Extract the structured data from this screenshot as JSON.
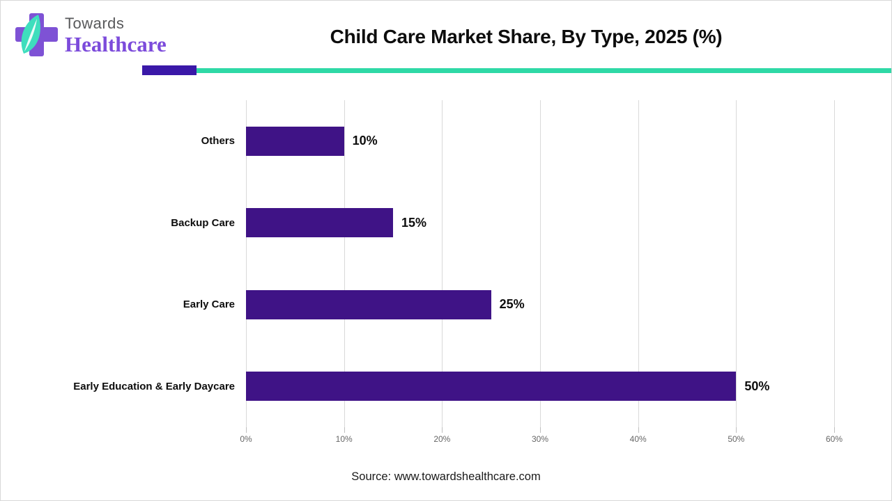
{
  "page": {
    "background": "#ffffff",
    "border_color": "#d8d8d8"
  },
  "header": {
    "logo": {
      "brand_top": "Towards",
      "brand_bottom": "Healthcare",
      "cross_color": "#7E52D5",
      "leaf_color": "#3EDEBD",
      "brand_top_color": "#58595B",
      "brand_bottom_color": "#7C4BDB"
    },
    "title": "Child Care Market Share, By Type, 2025 (%)",
    "accent_purple": "#3A18A8",
    "accent_teal": "#2FD9A6"
  },
  "chart_data": {
    "type": "bar",
    "orientation": "horizontal",
    "title": "Child Care Market Share, By Type, 2025 (%)",
    "categories": [
      "Others",
      "Backup Care",
      "Early Care",
      "Early Education & Early Daycare"
    ],
    "values": [
      10,
      15,
      25,
      50
    ],
    "value_labels": [
      "10%",
      "15%",
      "25%",
      "50%"
    ],
    "xlabel": "",
    "ylabel": "",
    "xlim": [
      0,
      60
    ],
    "x_ticks": [
      "0%",
      "10%",
      "20%",
      "30%",
      "40%",
      "50%",
      "60%"
    ],
    "bar_color": "#3F1386",
    "grid": true,
    "gridline_color": "#D9D9D9",
    "tick_color": "#BFBFBF",
    "legend": "none"
  },
  "footer": {
    "source": "Source: www.towardshealthcare.com"
  }
}
